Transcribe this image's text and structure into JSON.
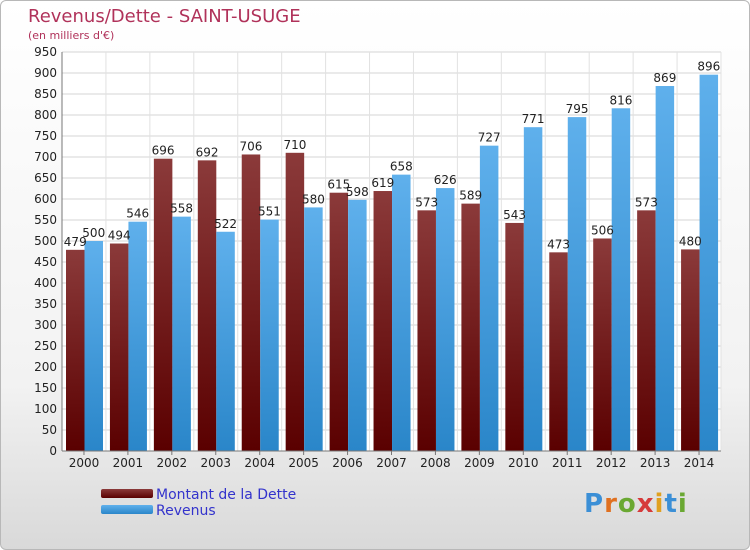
{
  "header": {
    "title": "Revenus/Dette - SAINT-USUGE",
    "subtitle": "(en milliers d'€)"
  },
  "legend": {
    "debt_label": "Montant de la Dette",
    "revenue_label": "Revenus"
  },
  "logo": {
    "text": "Proxiti"
  },
  "colors": {
    "debt_top": "#8b3a3a",
    "debt_bottom": "#5a0000",
    "revenue_top": "#5fb0ec",
    "revenue_bottom": "#2a86c9",
    "title": "#b0325a",
    "legend_text": "#3333cc"
  },
  "chart_data": {
    "type": "bar",
    "categories": [
      "2000",
      "2001",
      "2002",
      "2003",
      "2004",
      "2005",
      "2006",
      "2007",
      "2008",
      "2009",
      "2010",
      "2011",
      "2012",
      "2013",
      "2014"
    ],
    "series": [
      {
        "name": "Montant de la Dette",
        "values": [
          479,
          494,
          696,
          692,
          706,
          710,
          615,
          619,
          573,
          589,
          543,
          473,
          506,
          573,
          480
        ]
      },
      {
        "name": "Revenus",
        "values": [
          500,
          546,
          558,
          522,
          551,
          580,
          598,
          658,
          626,
          727,
          771,
          795,
          816,
          869,
          896
        ]
      }
    ],
    "ylim": [
      0,
      950
    ],
    "yticks": [
      0,
      50,
      100,
      150,
      200,
      250,
      300,
      350,
      400,
      450,
      500,
      550,
      600,
      650,
      700,
      750,
      800,
      850,
      900,
      950
    ],
    "grid": true,
    "legend_position": "bottom-left"
  }
}
